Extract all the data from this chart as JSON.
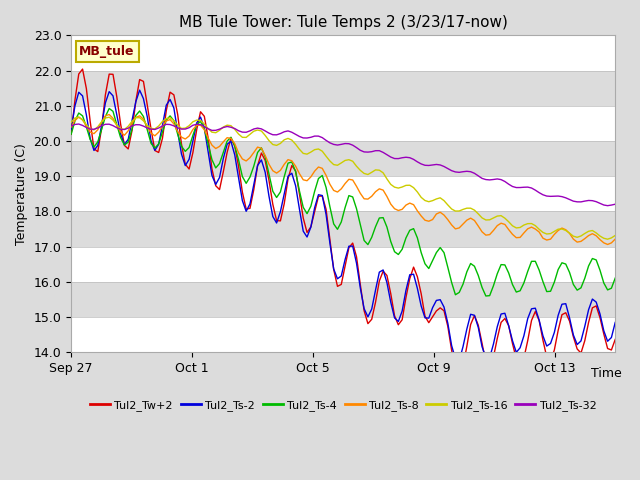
{
  "title": "MB Tule Tower: Tule Temps 2 (3/23/17-now)",
  "ylabel": "Temperature (C)",
  "xlabel": "Time",
  "ylim": [
    14.0,
    23.0
  ],
  "yticks": [
    14.0,
    15.0,
    16.0,
    17.0,
    18.0,
    19.0,
    20.0,
    21.0,
    22.0,
    23.0
  ],
  "fig_bg": "#dcdcdc",
  "plot_bg": "#dcdcdc",
  "series": [
    {
      "label": "Tul2_Tw+2",
      "color": "#dd0000"
    },
    {
      "label": "Tul2_Ts-2",
      "color": "#0000dd"
    },
    {
      "label": "Tul2_Ts-4",
      "color": "#00bb00"
    },
    {
      "label": "Tul2_Ts-8",
      "color": "#ff8800"
    },
    {
      "label": "Tul2_Ts-16",
      "color": "#cccc00"
    },
    {
      "label": "Tul2_Ts-32",
      "color": "#9900bb"
    }
  ],
  "xtick_labels": [
    "Sep 27",
    "Oct 1",
    "Oct 5",
    "Oct 9",
    "Oct 13"
  ],
  "xtick_positions": [
    0,
    4,
    8,
    12,
    16
  ],
  "legend_box_label": "MB_tule",
  "legend_box_facecolor": "#ffffcc",
  "legend_box_edgecolor": "#bbaa00",
  "legend_box_textcolor": "#880000"
}
